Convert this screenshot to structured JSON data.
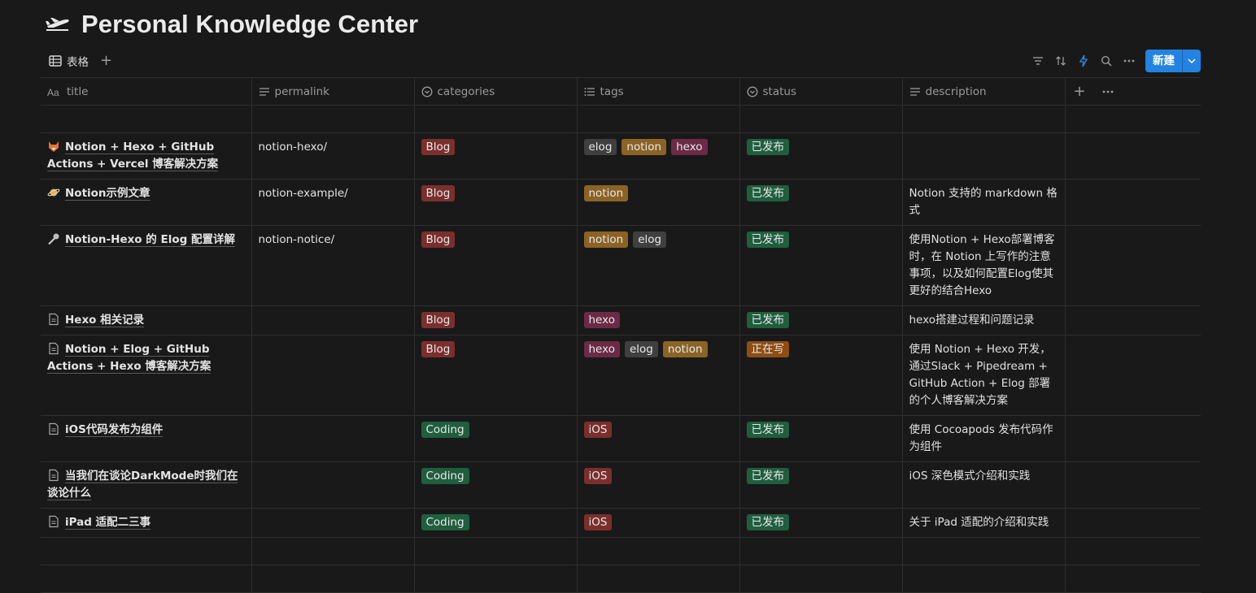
{
  "page": {
    "title": "Personal Knowledge  Center",
    "icon": "airplane-icon"
  },
  "view": {
    "tab_label": "表格",
    "new_button": "新建"
  },
  "columns": [
    {
      "label": "title",
      "icon": "text-aa-icon"
    },
    {
      "label": "permalink",
      "icon": "lines-icon"
    },
    {
      "label": "categories",
      "icon": "select-icon"
    },
    {
      "label": "tags",
      "icon": "list-icon"
    },
    {
      "label": "status",
      "icon": "status-icon"
    },
    {
      "label": "description",
      "icon": "lines-icon"
    }
  ],
  "colors": {
    "brand": "#2383e2",
    "Blog": "#7a2f2c",
    "Coding": "#1f5e3f",
    "elog": "#3f3f3f",
    "notion": "#8a6325",
    "hexo": "#6b2a45",
    "iOS": "#7a2f2c",
    "已发布": "#1f5e3f",
    "正在写": "#8d4d14"
  },
  "rows": [
    {
      "icon": "fox-icon",
      "title": "Notion + Hexo + GitHub Actions + Vercel 博客解决方案",
      "permalink": "notion-hexo/",
      "category": "Blog",
      "tags": [
        "elog",
        "notion",
        "hexo"
      ],
      "status": "已发布",
      "description": ""
    },
    {
      "icon": "saturn-icon",
      "title": "Notion示例文章",
      "permalink": "notion-example/",
      "category": "Blog",
      "tags": [
        "notion"
      ],
      "status": "已发布",
      "description": "Notion 支持的 markdown 格式"
    },
    {
      "icon": "microphone-icon",
      "title": "Notion-Hexo 的 Elog 配置详解",
      "permalink": "notion-notice/",
      "category": "Blog",
      "tags": [
        "notion",
        "elog"
      ],
      "status": "已发布",
      "description": "使用Notion + Hexo部署博客时，在 Notion 上写作的注意事项，以及如何配置Elog使其更好的结合Hexo"
    },
    {
      "icon": "page-icon",
      "title": "Hexo 相关记录",
      "permalink": "",
      "category": "Blog",
      "tags": [
        "hexo"
      ],
      "status": "已发布",
      "description": "hexo搭建过程和问题记录"
    },
    {
      "icon": "page-icon",
      "title": "Notion + Elog + GitHub Actions + Hexo 博客解决方案",
      "permalink": "",
      "category": "Blog",
      "tags": [
        "hexo",
        "elog",
        "notion"
      ],
      "status": "正在写",
      "description": "使用 Notion + Hexo 开发，通过Slack + Pipedream + GitHub Action + Elog 部署的个人博客解决方案"
    },
    {
      "icon": "page-icon",
      "title": "iOS代码发布为组件",
      "permalink": "",
      "category": "Coding",
      "tags": [
        "iOS"
      ],
      "status": "已发布",
      "description": "使用 Cocoapods 发布代码作为组件"
    },
    {
      "icon": "page-icon",
      "title": "当我们在谈论DarkMode时我们在谈论什么",
      "permalink": "",
      "category": "Coding",
      "tags": [
        "iOS"
      ],
      "status": "已发布",
      "description": "iOS 深色模式介绍和实践"
    },
    {
      "icon": "page-icon",
      "title": "iPad 适配二三事",
      "permalink": "",
      "category": "Coding",
      "tags": [
        "iOS"
      ],
      "status": "已发布",
      "description": "关于 iPad 适配的介绍和实践"
    }
  ]
}
